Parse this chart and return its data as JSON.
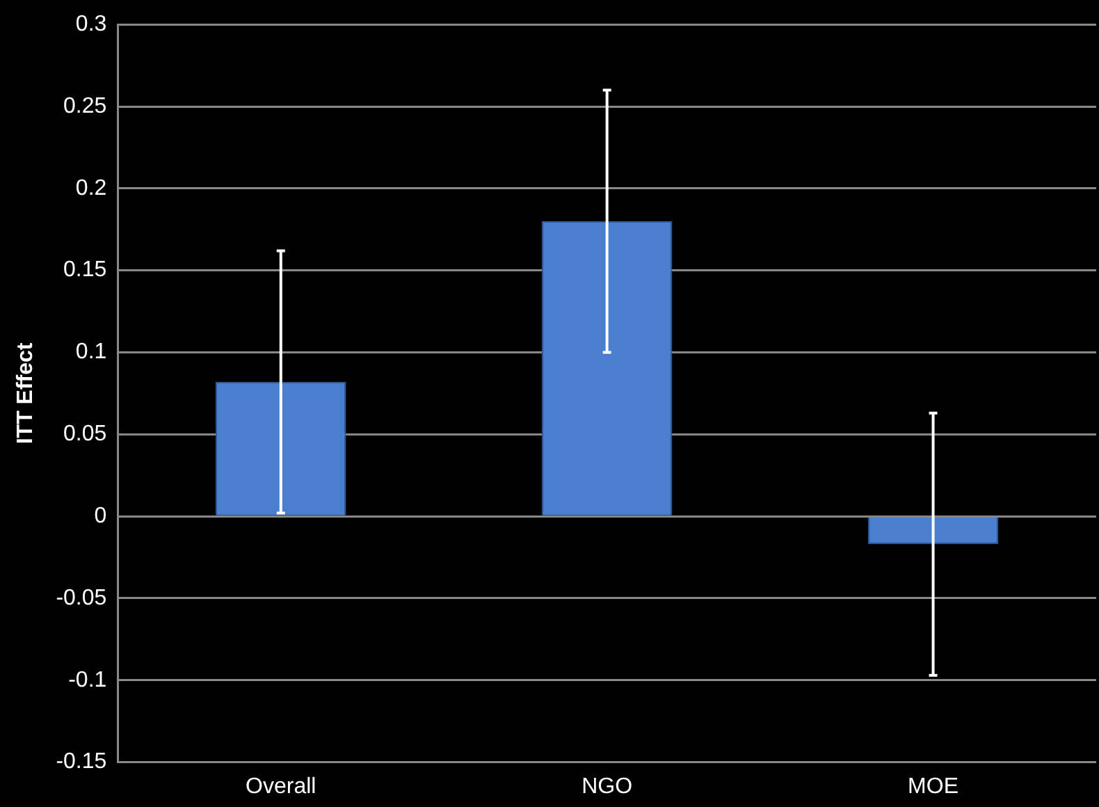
{
  "chart_data": {
    "type": "bar",
    "ylabel": "ITT Effect",
    "categories": [
      "Overall",
      "NGO",
      "MOE"
    ],
    "values": [
      0.082,
      0.18,
      -0.017
    ],
    "errors": [
      0.08,
      0.08,
      0.08
    ],
    "color": "#4a7fcf",
    "ylim": [
      -0.15,
      0.3
    ],
    "yticks": [
      -0.15,
      -0.1,
      -0.05,
      0,
      0.05,
      0.1,
      0.15,
      0.2,
      0.25,
      0.3
    ],
    "grid": "y"
  }
}
